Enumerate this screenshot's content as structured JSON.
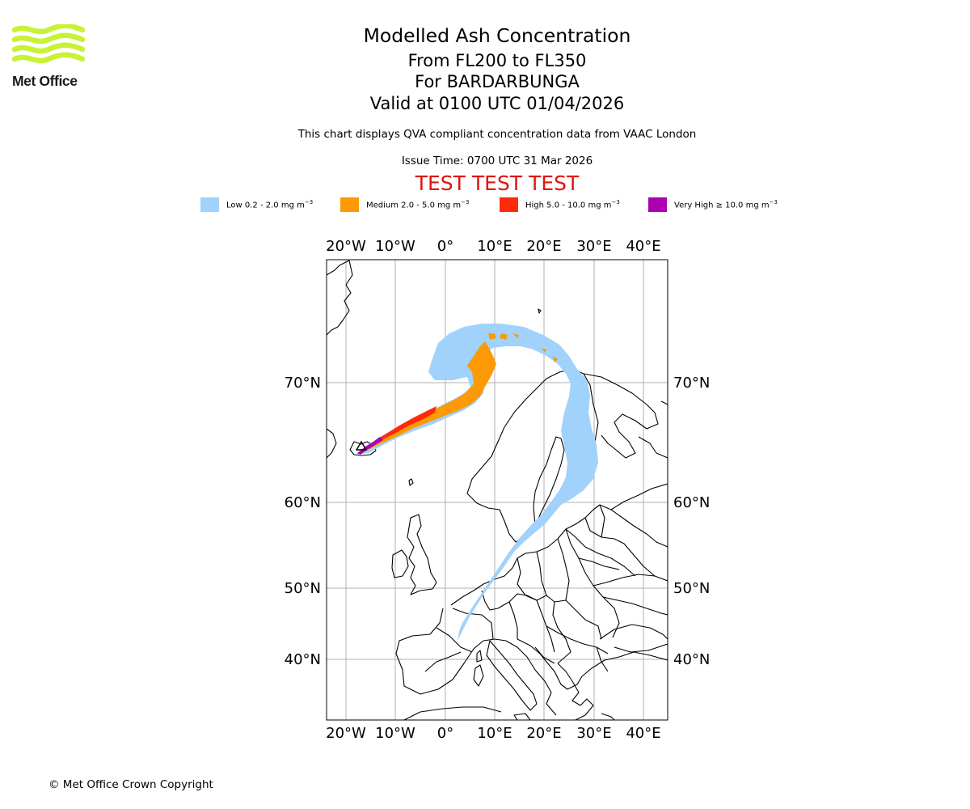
{
  "logo": {
    "text": "Met Office"
  },
  "titles": {
    "main": "Modelled Ash Concentration",
    "levels": "From FL200 to FL350",
    "volcano": "For BARDARBUNGA",
    "valid": "Valid at 0100 UTC 01/04/2026",
    "subtitle": "This chart displays QVA compliant concentration data from VAAC London",
    "issue": "Issue Time: 0700 UTC 31 Mar 2026",
    "test_banner": "TEST TEST TEST"
  },
  "legend": [
    {
      "label": "Low 0.2 - 2.0 mg m",
      "color": "#a0d2fb"
    },
    {
      "label": "Medium 2.0 - 5.0 mg m",
      "color": "#fb9a06"
    },
    {
      "label": "High 5.0 - 10.0 mg m",
      "color": "#ff2a0a"
    },
    {
      "label": "Very High ≥ 10.0 mg m",
      "color": "#ac00b1"
    }
  ],
  "legend_unit_exponent": "−3",
  "map": {
    "lon_labels": [
      "20°W",
      "10°W",
      "0°",
      "10°E",
      "20°E",
      "30°E",
      "40°E"
    ],
    "lat_labels": [
      "70°N",
      "60°N",
      "50°N",
      "40°N"
    ]
  },
  "copyright": "© Met Office Crown Copyright"
}
